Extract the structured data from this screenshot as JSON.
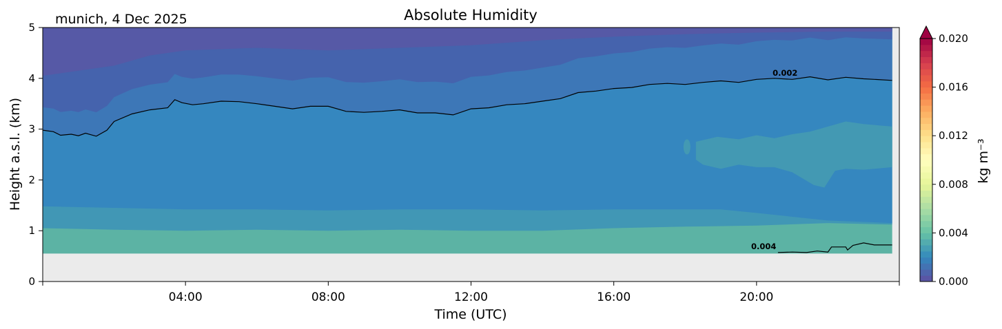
{
  "chart_data": {
    "type": "heatmap",
    "title": "Absolute Humidity",
    "subtitle": "munich, 4 Dec 2025",
    "xlabel": "Time (UTC)",
    "ylabel": "Height a.s.l. (km)",
    "xlim": [
      0,
      24
    ],
    "ylim": [
      0,
      5
    ],
    "x_ticks": [
      {
        "value": 4,
        "label": "04:00"
      },
      {
        "value": 8,
        "label": "08:00"
      },
      {
        "value": 12,
        "label": "12:00"
      },
      {
        "value": 16,
        "label": "16:00"
      },
      {
        "value": 20,
        "label": "20:00"
      }
    ],
    "y_ticks": [
      {
        "value": 0,
        "label": "0"
      },
      {
        "value": 1,
        "label": "1"
      },
      {
        "value": 2,
        "label": "2"
      },
      {
        "value": 3,
        "label": "3"
      },
      {
        "value": 4,
        "label": "4"
      },
      {
        "value": 5,
        "label": "5"
      }
    ],
    "data_bottom_km": 0.55,
    "data_end_hour": 23.8,
    "colorbar": {
      "label": "kg m⁻³",
      "range": [
        0.0,
        0.02
      ],
      "extend": "max",
      "colormap": "Spectral_r",
      "ticks": [
        {
          "value": 0.0,
          "label": "0.000"
        },
        {
          "value": 0.004,
          "label": "0.004"
        },
        {
          "value": 0.008,
          "label": "0.008"
        },
        {
          "value": 0.012,
          "label": "0.012"
        },
        {
          "value": 0.016,
          "label": "0.016"
        },
        {
          "value": 0.02,
          "label": "0.020"
        }
      ]
    },
    "contours": [
      {
        "level": 0.002,
        "label": "0.002",
        "label_at": [
          20.8,
          4.05
        ],
        "points": [
          [
            0,
            2.98
          ],
          [
            0.3,
            2.95
          ],
          [
            0.5,
            2.88
          ],
          [
            0.8,
            2.9
          ],
          [
            1.0,
            2.87
          ],
          [
            1.2,
            2.92
          ],
          [
            1.5,
            2.86
          ],
          [
            1.8,
            2.98
          ],
          [
            2.0,
            3.15
          ],
          [
            2.5,
            3.3
          ],
          [
            3.0,
            3.38
          ],
          [
            3.5,
            3.42
          ],
          [
            3.7,
            3.58
          ],
          [
            3.9,
            3.52
          ],
          [
            4.2,
            3.48
          ],
          [
            4.5,
            3.5
          ],
          [
            5.0,
            3.55
          ],
          [
            5.5,
            3.54
          ],
          [
            6.0,
            3.5
          ],
          [
            6.5,
            3.45
          ],
          [
            7.0,
            3.4
          ],
          [
            7.5,
            3.45
          ],
          [
            8.0,
            3.45
          ],
          [
            8.5,
            3.35
          ],
          [
            9.0,
            3.33
          ],
          [
            9.5,
            3.35
          ],
          [
            10.0,
            3.38
          ],
          [
            10.5,
            3.32
          ],
          [
            11.0,
            3.32
          ],
          [
            11.5,
            3.28
          ],
          [
            12.0,
            3.4
          ],
          [
            12.5,
            3.42
          ],
          [
            13.0,
            3.48
          ],
          [
            13.5,
            3.5
          ],
          [
            14.0,
            3.55
          ],
          [
            14.5,
            3.6
          ],
          [
            15.0,
            3.72
          ],
          [
            15.5,
            3.75
          ],
          [
            16.0,
            3.8
          ],
          [
            16.5,
            3.82
          ],
          [
            17.0,
            3.88
          ],
          [
            17.5,
            3.9
          ],
          [
            18.0,
            3.88
          ],
          [
            18.5,
            3.92
          ],
          [
            19.0,
            3.95
          ],
          [
            19.5,
            3.92
          ],
          [
            20.0,
            3.98
          ],
          [
            20.5,
            4.0
          ],
          [
            21.0,
            3.98
          ],
          [
            21.5,
            4.03
          ],
          [
            22.0,
            3.97
          ],
          [
            22.5,
            4.02
          ],
          [
            23.0,
            3.99
          ],
          [
            23.3,
            3.98
          ],
          [
            23.8,
            3.96
          ]
        ]
      },
      {
        "level": 0.004,
        "label": "0.004",
        "label_at": [
          20.2,
          0.64
        ],
        "points": [
          [
            20.6,
            0.57
          ],
          [
            21.0,
            0.58
          ],
          [
            21.4,
            0.57
          ],
          [
            21.7,
            0.6
          ],
          [
            22.0,
            0.58
          ],
          [
            22.1,
            0.68
          ],
          [
            22.5,
            0.68
          ],
          [
            22.55,
            0.62
          ],
          [
            22.7,
            0.71
          ],
          [
            23.0,
            0.76
          ],
          [
            23.3,
            0.72
          ],
          [
            23.8,
            0.72
          ]
        ]
      }
    ],
    "bands": [
      {
        "value": 0.0003,
        "color": "#5659a6",
        "bottom": [
          [
            0,
            4.05
          ],
          [
            2,
            4.25
          ],
          [
            3,
            4.45
          ],
          [
            4,
            4.55
          ],
          [
            6,
            4.6
          ],
          [
            8,
            4.55
          ],
          [
            10,
            4.6
          ],
          [
            12,
            4.65
          ],
          [
            14,
            4.75
          ],
          [
            16,
            4.82
          ],
          [
            18,
            4.87
          ],
          [
            20,
            4.9
          ],
          [
            22,
            4.92
          ],
          [
            23.8,
            4.92
          ]
        ]
      },
      {
        "value": 0.001,
        "color": "#4563ad"
      },
      {
        "value": 0.0017,
        "color": "#3d77b7"
      },
      {
        "value": 0.0025,
        "color": "#3587bf",
        "bottom": [
          [
            0,
            1.48
          ],
          [
            2,
            1.45
          ],
          [
            4,
            1.42
          ],
          [
            6,
            1.42
          ],
          [
            8,
            1.4
          ],
          [
            10,
            1.42
          ],
          [
            12,
            1.42
          ],
          [
            14,
            1.4
          ],
          [
            16,
            1.42
          ],
          [
            18,
            1.42
          ],
          [
            19,
            1.42
          ],
          [
            20,
            1.35
          ],
          [
            22,
            1.2
          ],
          [
            23.8,
            1.15
          ]
        ]
      },
      {
        "value": 0.0032,
        "color": "#4197b5",
        "bottom": [
          [
            0,
            1.05
          ],
          [
            2,
            1.02
          ],
          [
            4,
            1.0
          ],
          [
            6,
            1.02
          ],
          [
            8,
            1.0
          ],
          [
            10,
            1.02
          ],
          [
            12,
            1.0
          ],
          [
            14,
            1.0
          ],
          [
            16,
            1.05
          ],
          [
            18,
            1.08
          ],
          [
            20,
            1.1
          ],
          [
            22,
            1.15
          ],
          [
            23.8,
            1.12
          ]
        ]
      },
      {
        "value": 0.0038,
        "color": "#52aca7"
      }
    ],
    "humid_patch": {
      "value": 0.0031,
      "color": "#4399b3",
      "top": [
        [
          18.3,
          2.75
        ],
        [
          18.9,
          2.85
        ],
        [
          19.5,
          2.8
        ],
        [
          20.0,
          2.88
        ],
        [
          20.5,
          2.82
        ],
        [
          21.0,
          2.9
        ],
        [
          21.5,
          2.95
        ],
        [
          22.0,
          3.05
        ],
        [
          22.5,
          3.15
        ],
        [
          23.0,
          3.1
        ],
        [
          23.8,
          3.05
        ]
      ],
      "bottom": [
        [
          23.8,
          2.25
        ],
        [
          23.0,
          2.2
        ],
        [
          22.5,
          2.22
        ],
        [
          22.2,
          2.18
        ],
        [
          21.9,
          1.85
        ],
        [
          21.6,
          1.9
        ],
        [
          21.0,
          2.15
        ],
        [
          20.5,
          2.25
        ],
        [
          20.0,
          2.25
        ],
        [
          19.5,
          2.3
        ],
        [
          19.0,
          2.22
        ],
        [
          18.5,
          2.3
        ],
        [
          18.3,
          2.4
        ]
      ],
      "blob": [
        18.05,
        2.65
      ]
    },
    "bottom_band_color": "#5cb3a4"
  }
}
